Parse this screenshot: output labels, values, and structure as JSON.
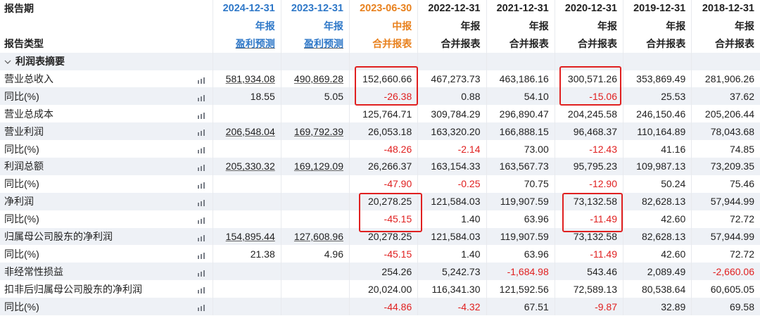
{
  "header": {
    "row_date_label": "报告期",
    "row_kind_label": "报告类型",
    "columns": [
      {
        "date": "2024-12-31",
        "kind": "年报",
        "type": "盈利预测",
        "date_color": "blue",
        "kind_color": "blue",
        "type_color": "blue",
        "underline": true
      },
      {
        "date": "2023-12-31",
        "kind": "年报",
        "type": "盈利预测",
        "date_color": "blue",
        "kind_color": "blue",
        "type_color": "blue",
        "underline": true
      },
      {
        "date": "2023-06-30",
        "kind": "中报",
        "type": "合并报表",
        "date_color": "orange",
        "kind_color": "orange",
        "type_color": "orange",
        "underline": false
      },
      {
        "date": "2022-12-31",
        "kind": "年报",
        "type": "合并报表",
        "date_color": "dark",
        "kind_color": "dark",
        "type_color": "dark",
        "underline": false
      },
      {
        "date": "2021-12-31",
        "kind": "年报",
        "type": "合并报表",
        "date_color": "dark",
        "kind_color": "dark",
        "type_color": "dark",
        "underline": false
      },
      {
        "date": "2020-12-31",
        "kind": "年报",
        "type": "合并报表",
        "date_color": "dark",
        "kind_color": "dark",
        "type_color": "dark",
        "underline": false
      },
      {
        "date": "2019-12-31",
        "kind": "年报",
        "type": "合并报表",
        "date_color": "dark",
        "kind_color": "dark",
        "type_color": "dark",
        "underline": false
      },
      {
        "date": "2018-12-31",
        "kind": "年报",
        "type": "合并报表",
        "date_color": "dark",
        "kind_color": "dark",
        "type_color": "dark",
        "underline": false
      }
    ]
  },
  "section_title": "利润表摘要",
  "rows": [
    {
      "label": "营业总收入",
      "indent": 1,
      "values": [
        "581,934.08",
        "490,869.28",
        "152,660.66",
        "467,273.73",
        "463,186.16",
        "300,571.26",
        "353,869.49",
        "281,906.26"
      ]
    },
    {
      "label": "同比(%)",
      "indent": 2,
      "values": [
        "18.55",
        "5.05",
        "-26.38",
        "0.88",
        "54.10",
        "-15.06",
        "25.53",
        "37.62"
      ]
    },
    {
      "label": "营业总成本",
      "indent": 1,
      "values": [
        "",
        "",
        "125,764.71",
        "309,784.29",
        "296,890.47",
        "204,245.58",
        "246,150.46",
        "205,206.44"
      ]
    },
    {
      "label": "营业利润",
      "indent": 1,
      "values": [
        "206,548.04",
        "169,792.39",
        "26,053.18",
        "163,320.20",
        "166,888.15",
        "96,468.37",
        "110,164.89",
        "78,043.68"
      ]
    },
    {
      "label": "同比(%)",
      "indent": 2,
      "values": [
        "",
        "",
        "-48.26",
        "-2.14",
        "73.00",
        "-12.43",
        "41.16",
        "74.85"
      ]
    },
    {
      "label": "利润总额",
      "indent": 1,
      "values": [
        "205,330.32",
        "169,129.09",
        "26,266.37",
        "163,154.33",
        "163,567.73",
        "95,795.23",
        "109,987.13",
        "73,209.35"
      ]
    },
    {
      "label": "同比(%)",
      "indent": 2,
      "values": [
        "",
        "",
        "-47.90",
        "-0.25",
        "70.75",
        "-12.90",
        "50.24",
        "75.46"
      ]
    },
    {
      "label": "净利润",
      "indent": 1,
      "values": [
        "",
        "",
        "20,278.25",
        "121,584.03",
        "119,907.59",
        "73,132.58",
        "82,628.13",
        "57,944.99"
      ]
    },
    {
      "label": "同比(%)",
      "indent": 2,
      "values": [
        "",
        "",
        "-45.15",
        "1.40",
        "63.96",
        "-11.49",
        "42.60",
        "72.72"
      ]
    },
    {
      "label": "归属母公司股东的净利润",
      "indent": 1,
      "values": [
        "154,895.44",
        "127,608.96",
        "20,278.25",
        "121,584.03",
        "119,907.59",
        "73,132.58",
        "82,628.13",
        "57,944.99"
      ]
    },
    {
      "label": "同比(%)",
      "indent": 2,
      "values": [
        "21.38",
        "4.96",
        "-45.15",
        "1.40",
        "63.96",
        "-11.49",
        "42.60",
        "72.72"
      ]
    },
    {
      "label": "非经常性损益",
      "indent": 1,
      "values": [
        "",
        "",
        "254.26",
        "5,242.73",
        "-1,684.98",
        "543.46",
        "2,089.49",
        "-2,660.06"
      ]
    },
    {
      "label": "扣非后归属母公司股东的净利润",
      "indent": 1,
      "values": [
        "",
        "",
        "20,024.00",
        "116,341.30",
        "121,592.56",
        "72,589.13",
        "80,538.64",
        "60,605.05"
      ]
    },
    {
      "label": "同比(%)",
      "indent": 2,
      "values": [
        "",
        "",
        "-44.86",
        "-4.32",
        "67.51",
        "-9.87",
        "32.89",
        "69.58"
      ]
    }
  ],
  "colors": {
    "blue": "#2f78c8",
    "orange": "#e8811e",
    "red": "#e02020",
    "alt_row": "#eef1f6"
  },
  "icons": {
    "row_chart": "bar-chart-icon",
    "section_toggle": "chevron-down-icon"
  }
}
